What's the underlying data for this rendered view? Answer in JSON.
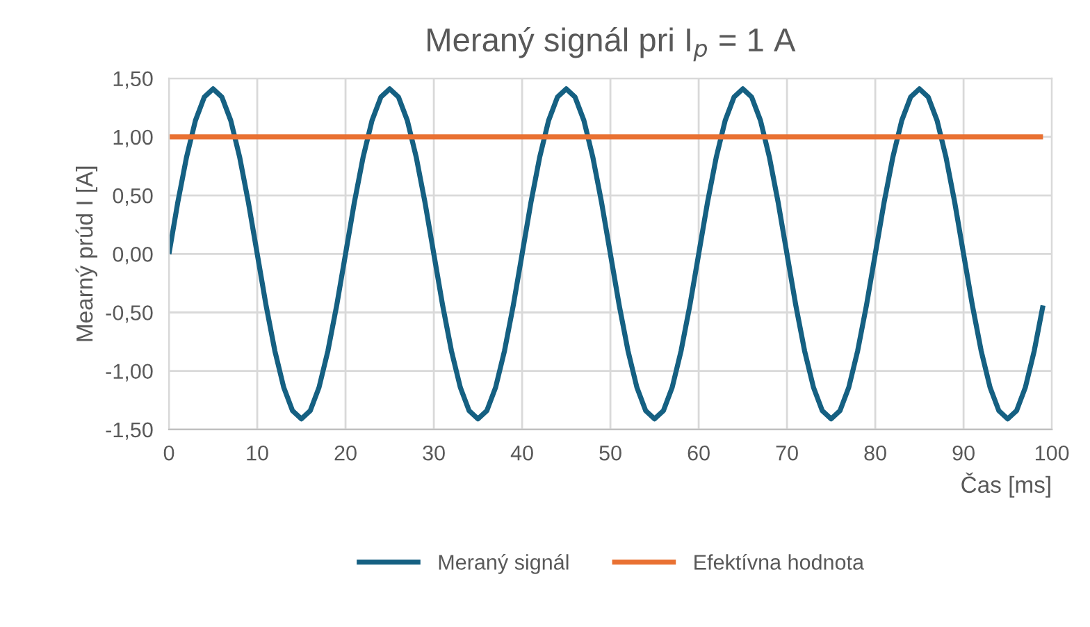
{
  "chart_data": {
    "type": "line",
    "title": "Meraný signál pri I$_{p}$ = 1 A",
    "xlabel": "Čas [ms]",
    "ylabel": "Mearný prúd I [A]",
    "series": [
      {
        "name": "Meraný signál",
        "color": "#156082",
        "x": [
          0,
          1,
          2,
          3,
          4,
          5,
          6,
          7,
          8,
          9,
          10,
          11,
          12,
          13,
          14,
          15,
          16,
          17,
          18,
          19,
          20,
          21,
          22,
          23,
          24,
          25,
          26,
          27,
          28,
          29,
          30,
          31,
          32,
          33,
          34,
          35,
          36,
          37,
          38,
          39,
          40,
          41,
          42,
          43,
          44,
          45,
          46,
          47,
          48,
          49,
          50,
          51,
          52,
          53,
          54,
          55,
          56,
          57,
          58,
          59,
          60,
          61,
          62,
          63,
          64,
          65,
          66,
          67,
          68,
          69,
          70,
          71,
          72,
          73,
          74,
          75,
          76,
          77,
          78,
          79,
          80,
          81,
          82,
          83,
          84,
          85,
          86,
          87,
          88,
          89,
          90,
          91,
          92,
          93,
          94,
          95,
          96,
          97,
          98,
          99
        ],
        "values": [
          0,
          0.44,
          0.83,
          1.14,
          1.34,
          1.41,
          1.34,
          1.14,
          0.83,
          0.44,
          0,
          -0.44,
          -0.83,
          -1.14,
          -1.34,
          -1.41,
          -1.34,
          -1.14,
          -0.83,
          -0.44,
          0,
          0.44,
          0.83,
          1.14,
          1.34,
          1.41,
          1.34,
          1.14,
          0.83,
          0.44,
          0,
          -0.44,
          -0.83,
          -1.14,
          -1.34,
          -1.41,
          -1.34,
          -1.14,
          -0.83,
          -0.44,
          0,
          0.44,
          0.83,
          1.14,
          1.34,
          1.41,
          1.34,
          1.14,
          0.83,
          0.44,
          0,
          -0.44,
          -0.83,
          -1.14,
          -1.34,
          -1.41,
          -1.34,
          -1.14,
          -0.83,
          -0.44,
          0,
          0.44,
          0.83,
          1.14,
          1.34,
          1.41,
          1.34,
          1.14,
          0.83,
          0.44,
          0,
          -0.44,
          -0.83,
          -1.14,
          -1.34,
          -1.41,
          -1.34,
          -1.14,
          -0.83,
          -0.44,
          0,
          0.44,
          0.83,
          1.14,
          1.34,
          1.41,
          1.34,
          1.14,
          0.83,
          0.44,
          0,
          -0.44,
          -0.83,
          -1.14,
          -1.34,
          -1.41,
          -1.34,
          -1.14,
          -0.83,
          -0.44
        ]
      },
      {
        "name": "Efektívna hodnota",
        "color": "#e97132",
        "x": [
          0,
          99
        ],
        "values": [
          1,
          1
        ]
      }
    ],
    "xlim": [
      0,
      100
    ],
    "xticks": [
      0,
      10,
      20,
      30,
      40,
      50,
      60,
      70,
      80,
      90,
      100
    ],
    "ylim": [
      -1.5,
      1.5
    ],
    "yticks": [
      {
        "value": -1.5,
        "label": "-1,50"
      },
      {
        "value": -1,
        "label": "-1,00"
      },
      {
        "value": -0.5,
        "label": "-0,50"
      },
      {
        "value": 0,
        "label": "0,00"
      },
      {
        "value": 0.5,
        "label": "0,50"
      },
      {
        "value": 1,
        "label": "1,00"
      },
      {
        "value": 1.5,
        "label": "1,50"
      }
    ],
    "grid": true,
    "legend": "bottom",
    "marker": "none",
    "line_style": "solid"
  }
}
